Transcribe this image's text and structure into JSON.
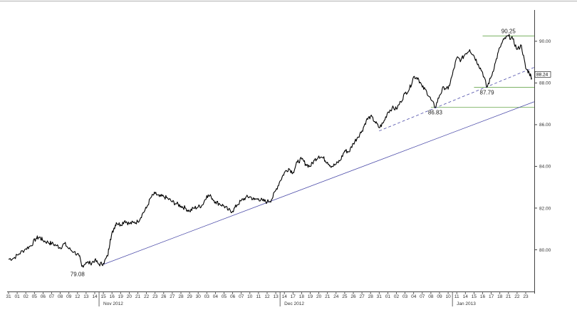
{
  "chart_data": {
    "type": "line",
    "title": "",
    "xlabel": "",
    "ylabel": "",
    "ylim": [
      78.0,
      91.5
    ],
    "grid": false,
    "legend": "none",
    "colors": {
      "price": "#000000",
      "trend": "#4a4aa8",
      "support_line": "#6aa84f",
      "axis": "#444444"
    },
    "y_ticks": [
      "80.00",
      "82.00",
      "84.00",
      "86.00",
      "88.00",
      "90.00"
    ],
    "y_tick_values": [
      80.0,
      82.0,
      84.0,
      86.0,
      88.0,
      90.0
    ],
    "x_day_labels": [
      "31",
      "01",
      "02",
      "05",
      "06",
      "07",
      "08",
      "09",
      "12",
      "13",
      "14",
      "15",
      "16",
      "19",
      "20",
      "21",
      "22",
      "23",
      "26",
      "27",
      "28",
      "29",
      "30",
      "03",
      "04",
      "05",
      "06",
      "07",
      "10",
      "11",
      "12",
      "13",
      "14",
      "17",
      "18",
      "19",
      "20",
      "21",
      "24",
      "25",
      "26",
      "27",
      "28",
      "31",
      "01",
      "02",
      "03",
      "04",
      "07",
      "08",
      "09",
      "10",
      "11",
      "14",
      "15",
      "16",
      "17",
      "18",
      "21",
      "22",
      "23"
    ],
    "month_labels": [
      {
        "label": "Nov 2012",
        "index": 11
      },
      {
        "label": "Dec 2012",
        "index": 32
      },
      {
        "label": "Jan 2013",
        "index": 52
      }
    ],
    "last_value": "88.24",
    "series": [
      {
        "values": [
          {
            "i": 0,
            "y": 79.55
          },
          {
            "i": 0.6,
            "y": 79.6
          },
          {
            "i": 1.2,
            "y": 79.8
          },
          {
            "i": 2,
            "y": 80.05
          },
          {
            "i": 2.6,
            "y": 80.2
          },
          {
            "i": 3.2,
            "y": 80.55
          },
          {
            "i": 3.6,
            "y": 80.6
          },
          {
            "i": 4,
            "y": 80.45
          },
          {
            "i": 4.6,
            "y": 80.35
          },
          {
            "i": 5,
            "y": 80.3
          },
          {
            "i": 5.6,
            "y": 80.2
          },
          {
            "i": 6,
            "y": 80.1
          },
          {
            "i": 6.5,
            "y": 80.3
          },
          {
            "i": 7,
            "y": 80.05
          },
          {
            "i": 7.6,
            "y": 79.9
          },
          {
            "i": 8.2,
            "y": 79.7
          },
          {
            "i": 8.5,
            "y": 79.2
          },
          {
            "i": 9,
            "y": 79.4
          },
          {
            "i": 9.5,
            "y": 79.35
          },
          {
            "i": 10,
            "y": 79.5
          },
          {
            "i": 10.5,
            "y": 79.3
          },
          {
            "i": 11,
            "y": 79.35
          },
          {
            "i": 11.5,
            "y": 79.7
          },
          {
            "i": 11.8,
            "y": 80.5
          },
          {
            "i": 12.2,
            "y": 81.0
          },
          {
            "i": 12.5,
            "y": 81.3
          },
          {
            "i": 13,
            "y": 81.2
          },
          {
            "i": 13.5,
            "y": 81.4
          },
          {
            "i": 14,
            "y": 81.25
          },
          {
            "i": 14.5,
            "y": 81.3
          },
          {
            "i": 15,
            "y": 81.35
          },
          {
            "i": 15.5,
            "y": 81.7
          },
          {
            "i": 16,
            "y": 82.0
          },
          {
            "i": 16.5,
            "y": 82.5
          },
          {
            "i": 17,
            "y": 82.7
          },
          {
            "i": 17.5,
            "y": 82.55
          },
          {
            "i": 18,
            "y": 82.55
          },
          {
            "i": 18.5,
            "y": 82.45
          },
          {
            "i": 19,
            "y": 82.3
          },
          {
            "i": 19.5,
            "y": 82.2
          },
          {
            "i": 20,
            "y": 82.1
          },
          {
            "i": 20.5,
            "y": 82.0
          },
          {
            "i": 21,
            "y": 81.85
          },
          {
            "i": 21.5,
            "y": 82.0
          },
          {
            "i": 22,
            "y": 82.05
          },
          {
            "i": 22.5,
            "y": 82.15
          },
          {
            "i": 23,
            "y": 82.6
          },
          {
            "i": 23.5,
            "y": 82.55
          },
          {
            "i": 24,
            "y": 82.3
          },
          {
            "i": 24.5,
            "y": 82.2
          },
          {
            "i": 25,
            "y": 82.1
          },
          {
            "i": 25.5,
            "y": 81.9
          },
          {
            "i": 26,
            "y": 81.85
          },
          {
            "i": 26.5,
            "y": 82.15
          },
          {
            "i": 27,
            "y": 82.35
          },
          {
            "i": 27.5,
            "y": 82.5
          },
          {
            "i": 28,
            "y": 82.55
          },
          {
            "i": 28.5,
            "y": 82.4
          },
          {
            "i": 29,
            "y": 82.45
          },
          {
            "i": 29.5,
            "y": 82.35
          },
          {
            "i": 30,
            "y": 82.3
          },
          {
            "i": 30.5,
            "y": 82.4
          },
          {
            "i": 31,
            "y": 82.85
          },
          {
            "i": 31.5,
            "y": 83.3
          },
          {
            "i": 32,
            "y": 83.7
          },
          {
            "i": 32.5,
            "y": 83.9
          },
          {
            "i": 33,
            "y": 83.7
          },
          {
            "i": 33.5,
            "y": 84.2
          },
          {
            "i": 34,
            "y": 84.35
          },
          {
            "i": 34.5,
            "y": 84.1
          },
          {
            "i": 35,
            "y": 84.0
          },
          {
            "i": 35.5,
            "y": 84.3
          },
          {
            "i": 36,
            "y": 84.5
          },
          {
            "i": 36.5,
            "y": 84.4
          },
          {
            "i": 37,
            "y": 84.2
          },
          {
            "i": 37.5,
            "y": 84.0
          },
          {
            "i": 38,
            "y": 84.1
          },
          {
            "i": 38.5,
            "y": 84.3
          },
          {
            "i": 39,
            "y": 84.75
          },
          {
            "i": 39.5,
            "y": 84.7
          },
          {
            "i": 40,
            "y": 85.1
          },
          {
            "i": 40.5,
            "y": 85.4
          },
          {
            "i": 41,
            "y": 85.7
          },
          {
            "i": 41.5,
            "y": 86.2
          },
          {
            "i": 42,
            "y": 86.4
          },
          {
            "i": 42.5,
            "y": 86.15
          },
          {
            "i": 43,
            "y": 85.85
          },
          {
            "i": 43.5,
            "y": 86.1
          },
          {
            "i": 44,
            "y": 86.6
          },
          {
            "i": 44.5,
            "y": 86.8
          },
          {
            "i": 45,
            "y": 86.75
          },
          {
            "i": 45.5,
            "y": 87.1
          },
          {
            "i": 46,
            "y": 87.5
          },
          {
            "i": 46.5,
            "y": 87.7
          },
          {
            "i": 47,
            "y": 88.3
          },
          {
            "i": 47.5,
            "y": 88.25
          },
          {
            "i": 48,
            "y": 87.8
          },
          {
            "i": 48.5,
            "y": 87.6
          },
          {
            "i": 49,
            "y": 87.2
          },
          {
            "i": 49.5,
            "y": 86.83
          },
          {
            "i": 50,
            "y": 87.4
          },
          {
            "i": 50.5,
            "y": 87.8
          },
          {
            "i": 51,
            "y": 87.7
          },
          {
            "i": 51.5,
            "y": 88.4
          },
          {
            "i": 52,
            "y": 89.2
          },
          {
            "i": 52.5,
            "y": 89.1
          },
          {
            "i": 53,
            "y": 89.4
          },
          {
            "i": 53.5,
            "y": 89.6
          },
          {
            "i": 54,
            "y": 89.3
          },
          {
            "i": 54.5,
            "y": 88.9
          },
          {
            "i": 55,
            "y": 88.5
          },
          {
            "i": 55.5,
            "y": 87.79
          },
          {
            "i": 56,
            "y": 88.3
          },
          {
            "i": 56.5,
            "y": 89.0
          },
          {
            "i": 57,
            "y": 89.7
          },
          {
            "i": 57.5,
            "y": 90.1
          },
          {
            "i": 58,
            "y": 90.25
          },
          {
            "i": 58.5,
            "y": 90.1
          },
          {
            "i": 59,
            "y": 89.6
          },
          {
            "i": 59.5,
            "y": 89.8
          },
          {
            "i": 60,
            "y": 88.7
          },
          {
            "i": 60.4,
            "y": 88.5
          },
          {
            "i": 60.7,
            "y": 88.24
          }
        ]
      }
    ],
    "trend_lines": [
      {
        "style": "solid",
        "color": "#4a4aa8",
        "from": {
          "i": 11,
          "y": 79.3
        },
        "to": {
          "i": 61.5,
          "y": 87.1
        }
      },
      {
        "style": "dashed",
        "color": "#4a4aa8",
        "from": {
          "i": 43,
          "y": 85.7
        },
        "to": {
          "i": 61.5,
          "y": 88.75
        }
      }
    ],
    "support_lines": [
      {
        "y": 90.25,
        "from_i": 55,
        "to_i": 62
      },
      {
        "y": 87.79,
        "from_i": 54,
        "to_i": 62
      },
      {
        "y": 86.83,
        "from_i": 49,
        "to_i": 62
      }
    ],
    "annotations": [
      {
        "text": "79.08",
        "i": 8,
        "y": 79.08
      },
      {
        "text": "86.83",
        "i": 49.5,
        "y": 86.83
      },
      {
        "text": "87.79",
        "i": 55.5,
        "y": 87.79
      },
      {
        "text": "90.25",
        "i": 58,
        "y": 90.25
      }
    ]
  }
}
